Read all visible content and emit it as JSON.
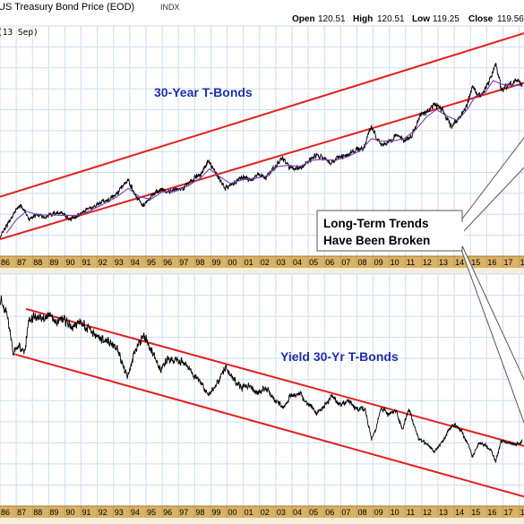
{
  "header": {
    "title": "US Treasury Bond Price (EOD)",
    "symbol": "INDX",
    "open_label": "Open",
    "open": "120.51",
    "high_label": "High",
    "high": "120.51",
    "low_label": "Low",
    "low": "119.25",
    "close_label": "Close",
    "close": "119.56",
    "date_label": "(13 Sep)"
  },
  "colors": {
    "grid": "#c9ddf2",
    "price": "#000000",
    "ma": "#7a3fb0",
    "trend": "#e0201e",
    "label_text": "#1f2fa8",
    "axis_band": "#d9b267",
    "date_bar": "#f4efdb"
  },
  "chart_data": [
    {
      "type": "line",
      "panel": "top",
      "label": "30-Year T-Bonds",
      "callout": [
        "Long-Term Trends",
        "Have Been Broken"
      ],
      "x_tick_labels": [
        "86",
        "87",
        "88",
        "89",
        "90",
        "91",
        "92",
        "93",
        "94",
        "95",
        "96",
        "97",
        "98",
        "99",
        "00",
        "01",
        "02",
        "03",
        "04",
        "05",
        "06",
        "07",
        "08",
        "09",
        "10",
        "11",
        "12",
        "13",
        "14",
        "15",
        "16",
        "17",
        "1"
      ],
      "series": [
        {
          "values": [
            [
              1986.0,
              88.0
            ],
            [
              1986.5,
              93.5
            ],
            [
              1987.0,
              99.0
            ],
            [
              1987.3,
              101.0
            ],
            [
              1987.8,
              95.5
            ],
            [
              1988.3,
              97.0
            ],
            [
              1988.8,
              96.5
            ],
            [
              1989.3,
              97.5
            ],
            [
              1989.8,
              98.0
            ],
            [
              1990.3,
              95.0
            ],
            [
              1990.8,
              97.0
            ],
            [
              1991.3,
              99.0
            ],
            [
              1991.8,
              100.5
            ],
            [
              1992.3,
              102.5
            ],
            [
              1992.8,
              103.5
            ],
            [
              1993.3,
              106.5
            ],
            [
              1993.9,
              111.5
            ],
            [
              1994.3,
              105.5
            ],
            [
              1994.8,
              100.5
            ],
            [
              1995.3,
              104.5
            ],
            [
              1995.9,
              108.0
            ],
            [
              1996.3,
              106.0
            ],
            [
              1996.8,
              107.5
            ],
            [
              1997.3,
              108.0
            ],
            [
              1997.9,
              112.0
            ],
            [
              1998.4,
              114.0
            ],
            [
              1998.85,
              119.5
            ],
            [
              1999.3,
              114.0
            ],
            [
              1999.9,
              108.0
            ],
            [
              2000.4,
              110.0
            ],
            [
              2000.9,
              112.5
            ],
            [
              2001.4,
              111.5
            ],
            [
              2001.9,
              113.5
            ],
            [
              2002.4,
              112.5
            ],
            [
              2002.9,
              116.5
            ],
            [
              2003.4,
              120.5
            ],
            [
              2003.8,
              117.0
            ],
            [
              2004.4,
              116.0
            ],
            [
              2004.9,
              118.5
            ],
            [
              2005.4,
              121.5
            ],
            [
              2005.9,
              120.5
            ],
            [
              2006.4,
              118.5
            ],
            [
              2006.9,
              121.0
            ],
            [
              2007.4,
              121.5
            ],
            [
              2007.9,
              124.0
            ],
            [
              2008.4,
              124.5
            ],
            [
              2008.9,
              133.5
            ],
            [
              2009.2,
              129.0
            ],
            [
              2009.6,
              125.5
            ],
            [
              2010.0,
              127.5
            ],
            [
              2010.5,
              130.0
            ],
            [
              2010.9,
              127.5
            ],
            [
              2011.4,
              130.0
            ],
            [
              2011.9,
              138.0
            ],
            [
              2012.4,
              140.0
            ],
            [
              2012.8,
              143.0
            ],
            [
              2013.3,
              140.0
            ],
            [
              2013.8,
              133.5
            ],
            [
              2014.3,
              137.0
            ],
            [
              2014.8,
              142.0
            ],
            [
              2015.1,
              150.5
            ],
            [
              2015.5,
              146.0
            ],
            [
              2015.9,
              149.0
            ],
            [
              2016.3,
              154.0
            ],
            [
              2016.55,
              159.5
            ],
            [
              2016.9,
              149.0
            ],
            [
              2017.3,
              150.0
            ],
            [
              2017.8,
              152.5
            ],
            [
              2018.2,
              150.0
            ]
          ]
        },
        {
          "values": [
            [
              1986.4,
              89.5
            ],
            [
              1987.0,
              95.0
            ],
            [
              1987.6,
              98.5
            ],
            [
              1988.4,
              97.0
            ],
            [
              1989.2,
              97.0
            ],
            [
              1990.0,
              96.8
            ],
            [
              1990.8,
              96.8
            ],
            [
              1991.6,
              99.0
            ],
            [
              1992.4,
              101.5
            ],
            [
              1993.2,
              104.5
            ],
            [
              1993.9,
              108.0
            ],
            [
              1994.6,
              104.5
            ],
            [
              1995.3,
              103.5
            ],
            [
              1996.0,
              106.5
            ],
            [
              1996.8,
              106.8
            ],
            [
              1997.6,
              109.0
            ],
            [
              1998.4,
              112.5
            ],
            [
              1998.9,
              116.0
            ],
            [
              1999.5,
              113.0
            ],
            [
              2000.2,
              110.0
            ],
            [
              2000.9,
              111.5
            ],
            [
              2001.6,
              112.0
            ],
            [
              2002.4,
              113.0
            ],
            [
              2003.1,
              117.0
            ],
            [
              2003.8,
              117.5
            ],
            [
              2004.5,
              117.0
            ],
            [
              2005.2,
              119.5
            ],
            [
              2005.9,
              120.0
            ],
            [
              2006.6,
              119.5
            ],
            [
              2007.4,
              121.0
            ],
            [
              2008.2,
              123.5
            ],
            [
              2008.9,
              128.5
            ],
            [
              2009.5,
              127.5
            ],
            [
              2010.2,
              127.5
            ],
            [
              2010.9,
              128.5
            ],
            [
              2011.6,
              132.0
            ],
            [
              2012.3,
              137.5
            ],
            [
              2012.9,
              140.5
            ],
            [
              2013.5,
              138.0
            ],
            [
              2014.2,
              136.0
            ],
            [
              2014.8,
              140.5
            ],
            [
              2015.3,
              146.0
            ],
            [
              2015.9,
              147.5
            ],
            [
              2016.4,
              152.5
            ],
            [
              2016.9,
              151.0
            ],
            [
              2017.5,
              150.5
            ],
            [
              2018.2,
              150.5
            ]
          ]
        }
      ],
      "trendlines": [
        {
          "x": [
            1986.0,
            2018.3
          ],
          "y": [
            104.5,
            172.0
          ]
        },
        {
          "x": [
            1986.0,
            2018.3
          ],
          "y": [
            87.0,
            151.5
          ]
        }
      ],
      "ylim": [
        80,
        175
      ],
      "xlim": [
        1986.0,
        2018.3
      ]
    },
    {
      "type": "line",
      "panel": "bottom",
      "label": "Yield 30-Yr T-Bonds",
      "x_tick_labels": [
        "86",
        "87",
        "88",
        "89",
        "90",
        "91",
        "92",
        "93",
        "94",
        "95",
        "96",
        "97",
        "98",
        "99",
        "00",
        "01",
        "02",
        "03",
        "04",
        "05",
        "06",
        "07",
        "08",
        "09",
        "10",
        "11",
        "12",
        "13",
        "14",
        "15",
        "16",
        "17",
        "1"
      ],
      "series": [
        {
          "values": [
            [
              1986.0,
              9.8
            ],
            [
              1986.4,
              9.2
            ],
            [
              1986.65,
              8.2
            ],
            [
              1986.8,
              7.3
            ],
            [
              1987.2,
              7.5
            ],
            [
              1987.5,
              7.2
            ],
            [
              1987.8,
              8.8
            ],
            [
              1988.2,
              9.0
            ],
            [
              1988.6,
              8.9
            ],
            [
              1989.0,
              9.0
            ],
            [
              1989.5,
              8.7
            ],
            [
              1989.9,
              8.9
            ],
            [
              1990.4,
              8.5
            ],
            [
              1990.9,
              8.8
            ],
            [
              1991.4,
              8.4
            ],
            [
              1992.0,
              8.0
            ],
            [
              1992.6,
              7.8
            ],
            [
              1993.2,
              7.5
            ],
            [
              1993.85,
              6.1
            ],
            [
              1994.3,
              7.3
            ],
            [
              1994.8,
              8.1
            ],
            [
              1995.3,
              7.5
            ],
            [
              1995.9,
              6.4
            ],
            [
              1996.4,
              7.0
            ],
            [
              1996.9,
              6.9
            ],
            [
              1997.4,
              6.8
            ],
            [
              1997.9,
              6.2
            ],
            [
              1998.4,
              5.9
            ],
            [
              1998.8,
              5.2
            ],
            [
              1999.3,
              5.7
            ],
            [
              1999.9,
              6.6
            ],
            [
              2000.4,
              6.0
            ],
            [
              2000.9,
              5.6
            ],
            [
              2001.4,
              5.7
            ],
            [
              2001.9,
              5.4
            ],
            [
              2002.4,
              5.6
            ],
            [
              2002.9,
              5.0
            ],
            [
              2003.5,
              4.7
            ],
            [
              2003.9,
              5.2
            ],
            [
              2004.5,
              5.3
            ],
            [
              2004.9,
              4.9
            ],
            [
              2005.5,
              4.4
            ],
            [
              2005.9,
              4.7
            ],
            [
              2006.5,
              5.2
            ],
            [
              2006.9,
              4.8
            ],
            [
              2007.5,
              5.0
            ],
            [
              2007.9,
              4.6
            ],
            [
              2008.5,
              4.6
            ],
            [
              2008.9,
              3.2
            ],
            [
              2009.2,
              3.7
            ],
            [
              2009.5,
              4.7
            ],
            [
              2009.9,
              4.3
            ],
            [
              2010.4,
              4.6
            ],
            [
              2010.8,
              3.6
            ],
            [
              2011.2,
              4.6
            ],
            [
              2011.8,
              3.2
            ],
            [
              2012.4,
              2.9
            ],
            [
              2012.8,
              2.6
            ],
            [
              2013.4,
              3.2
            ],
            [
              2013.9,
              3.9
            ],
            [
              2014.4,
              3.6
            ],
            [
              2014.9,
              2.9
            ],
            [
              2015.1,
              2.3
            ],
            [
              2015.5,
              3.0
            ],
            [
              2015.9,
              2.9
            ],
            [
              2016.3,
              2.6
            ],
            [
              2016.55,
              2.1
            ],
            [
              2016.9,
              3.1
            ],
            [
              2017.3,
              3.0
            ],
            [
              2017.8,
              2.9
            ],
            [
              2018.2,
              3.1
            ]
          ]
        }
      ],
      "trendlines": [
        {
          "x": [
            1987.6,
            2018.3
          ],
          "y": [
            9.35,
            2.85
          ]
        },
        {
          "x": [
            1986.9,
            2018.3
          ],
          "y": [
            7.2,
            0.45
          ]
        }
      ],
      "ylim": [
        0,
        11
      ],
      "xlim": [
        1986.0,
        2018.3
      ]
    }
  ]
}
